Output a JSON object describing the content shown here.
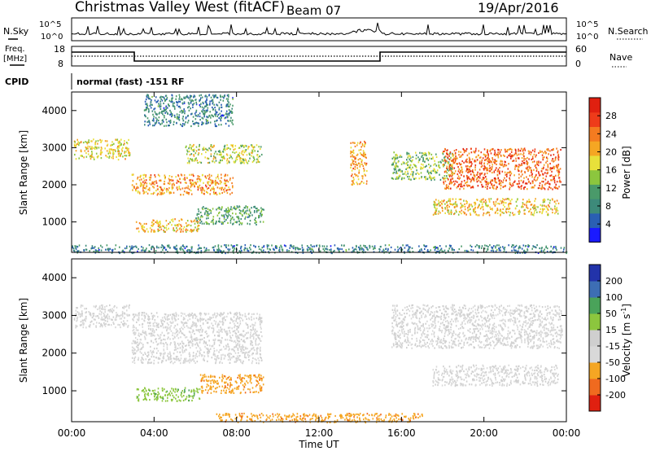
{
  "header": {
    "station": "Christmas Valley West (fitACF)",
    "beam": "Beam 07",
    "date": "19/Apr/2016"
  },
  "nsky_panel": {
    "label": "N.Sky",
    "ticks_left": [
      "10^5",
      "10^0"
    ],
    "ticks_right": [
      "10^5",
      "10^0"
    ],
    "right_label": "N.Search"
  },
  "freq_panel": {
    "label_line1": "Freq.",
    "label_line2": "[MHz]",
    "ticks_left": [
      "18",
      "8"
    ],
    "ticks_right": [
      "60",
      "0"
    ],
    "right_label": "Nave"
  },
  "cpid": {
    "label": "CPID",
    "text": "normal (fast) -151 RF"
  },
  "colors": {
    "power": [
      "#1a1aff",
      "#2a5fb4",
      "#3d8a7a",
      "#4a9a6a",
      "#8cc63e",
      "#e8e03a",
      "#f5a623",
      "#f47b20",
      "#ee3b1a",
      "#e02010"
    ],
    "velocity": [
      "#e02010",
      "#f06a1f",
      "#f5a623",
      "#d9d9d9",
      "#cfcfcf",
      "#8cc63e",
      "#4aa35a",
      "#3d6eb4",
      "#2233aa"
    ]
  },
  "chart_data": [
    {
      "type": "heatmap",
      "title": "",
      "quantity": "Power",
      "xlabel": "Time UT",
      "ylabel": "Slant Range [km]",
      "x_range_hours": [
        0,
        24
      ],
      "ylim_km": [
        180,
        4500
      ],
      "x_ticks": [
        "00:00",
        "04:00",
        "08:00",
        "12:00",
        "16:00",
        "20:00",
        "00:00"
      ],
      "y_ticks": [
        "1000",
        "2000",
        "3000",
        "4000"
      ],
      "colorbar": {
        "label": "Power [dB]",
        "ticks": [
          "4",
          "8",
          "12",
          "16",
          "20",
          "24",
          "28"
        ],
        "range": [
          0,
          32
        ]
      },
      "echo_regions": [
        {
          "t_start": 0.1,
          "t_end": 2.8,
          "r_low": 2700,
          "r_high": 3250,
          "power_db": 18
        },
        {
          "t_start": 2.9,
          "t_end": 7.8,
          "r_low": 1750,
          "r_high": 2300,
          "power_db": 22
        },
        {
          "t_start": 5.5,
          "t_end": 9.2,
          "r_low": 2600,
          "r_high": 3100,
          "power_db": 16
        },
        {
          "t_start": 3.1,
          "t_end": 6.2,
          "r_low": 750,
          "r_high": 1100,
          "power_db": 20
        },
        {
          "t_start": 6.0,
          "t_end": 9.3,
          "r_low": 950,
          "r_high": 1450,
          "power_db": 11
        },
        {
          "t_start": 3.5,
          "t_end": 7.8,
          "r_low": 3600,
          "r_high": 4450,
          "power_db": 8
        },
        {
          "t_start": 13.5,
          "t_end": 14.3,
          "r_low": 2000,
          "r_high": 3200,
          "power_db": 21
        },
        {
          "t_start": 15.5,
          "t_end": 18.5,
          "r_low": 2150,
          "r_high": 2900,
          "power_db": 14
        },
        {
          "t_start": 18.0,
          "t_end": 23.7,
          "r_low": 1900,
          "r_high": 3000,
          "power_db": 25
        },
        {
          "t_start": 17.5,
          "t_end": 23.6,
          "r_low": 1200,
          "r_high": 1650,
          "power_db": 19
        },
        {
          "t_start": 0.0,
          "t_end": 24.0,
          "r_low": 180,
          "r_high": 400,
          "power_db": 8
        }
      ]
    },
    {
      "type": "heatmap",
      "title": "",
      "quantity": "Velocity",
      "xlabel": "Time UT",
      "ylabel": "Slant Range [km]",
      "x_range_hours": [
        0,
        24
      ],
      "ylim_km": [
        180,
        4500
      ],
      "x_ticks": [
        "00:00",
        "04:00",
        "08:00",
        "12:00",
        "16:00",
        "20:00",
        "00:00"
      ],
      "y_ticks": [
        "1000",
        "2000",
        "3000",
        "4000"
      ],
      "colorbar": {
        "label": "Velocity [m s^-1]",
        "ticks": [
          "-200",
          "-100",
          "-50",
          "-15",
          "15",
          "50",
          "100",
          "200"
        ]
      },
      "echo_regions": [
        {
          "t_start": 0.1,
          "t_end": 2.8,
          "r_low": 2700,
          "r_high": 3300,
          "velocity": 0
        },
        {
          "t_start": 2.9,
          "t_end": 9.2,
          "r_low": 1750,
          "r_high": 3100,
          "velocity": 0
        },
        {
          "t_start": 3.1,
          "t_end": 6.2,
          "r_low": 750,
          "r_high": 1100,
          "velocity": 60
        },
        {
          "t_start": 6.2,
          "t_end": 9.3,
          "r_low": 950,
          "r_high": 1450,
          "velocity": -60
        },
        {
          "t_start": 15.5,
          "t_end": 23.8,
          "r_low": 2150,
          "r_high": 3300,
          "velocity": 0
        },
        {
          "t_start": 17.5,
          "t_end": 23.6,
          "r_low": 1150,
          "r_high": 1700,
          "velocity": 0
        },
        {
          "t_start": 7.0,
          "t_end": 17.0,
          "r_low": 180,
          "r_high": 420,
          "velocity": -60
        }
      ]
    }
  ]
}
